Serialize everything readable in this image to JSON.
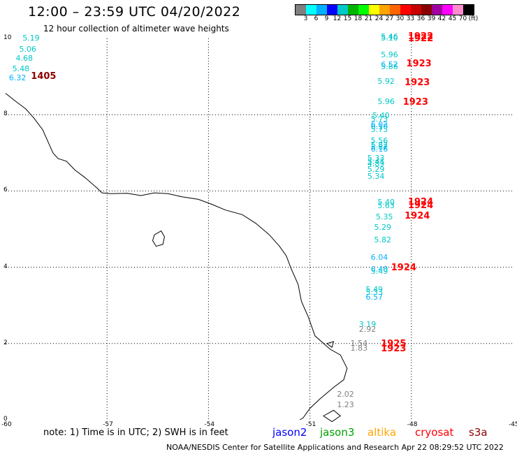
{
  "header": {
    "title": "12:00 – 23:59 UTC 04/20/2022",
    "subtitle": "12 hour collection of altimeter wave heights"
  },
  "colorbar": {
    "colors": [
      "#7f7f7f",
      "#00ffff",
      "#00b0ff",
      "#0000ff",
      "#00c8c8",
      "#00b400",
      "#00ff00",
      "#ffff00",
      "#ffa500",
      "#ff6400",
      "#ff0000",
      "#c80000",
      "#8b0000",
      "#a000a0",
      "#ff00ff",
      "#ff8ccf",
      "#000000"
    ],
    "labels": [
      "3",
      "6",
      "9",
      "12",
      "15",
      "18",
      "21",
      "24",
      "27",
      "30",
      "33",
      "36",
      "39",
      "42",
      "45",
      "70",
      "(ft)"
    ]
  },
  "axes": {
    "x_ticks": [
      "-60",
      "-57",
      "-54",
      "-51",
      "-48",
      "-45"
    ],
    "y_ticks": [
      "10",
      "8",
      "6",
      "4",
      "2",
      "0"
    ]
  },
  "wave_points": [
    {
      "v": "5.19",
      "c": "#00c8c8",
      "lon": -59.5,
      "lat": 10.0
    },
    {
      "v": "5.06",
      "c": "#00c8c8",
      "lon": -59.6,
      "lat": 9.7
    },
    {
      "v": "4.68",
      "c": "#00c8c8",
      "lon": -59.7,
      "lat": 9.47
    },
    {
      "v": "5.48",
      "c": "#00c8c8",
      "lon": -59.8,
      "lat": 9.2
    },
    {
      "v": "6.32",
      "c": "#00b0ff",
      "lon": -59.9,
      "lat": 8.95
    },
    {
      "v": "5.46",
      "c": "#00c8c8",
      "lon": -48.9,
      "lat": 10.04
    },
    {
      "v": "5.10",
      "c": "#00c8c8",
      "lon": -48.9,
      "lat": 10.0
    },
    {
      "v": "5.96",
      "c": "#00c8c8",
      "lon": -48.9,
      "lat": 9.56
    },
    {
      "v": "6.52",
      "c": "#00b0ff",
      "lon": -48.9,
      "lat": 9.3
    },
    {
      "v": "5.86",
      "c": "#00c8c8",
      "lon": -48.9,
      "lat": 9.25
    },
    {
      "v": "5.92",
      "c": "#00c8c8",
      "lon": -49.0,
      "lat": 8.86
    },
    {
      "v": "5.96",
      "c": "#00c8c8",
      "lon": -49.0,
      "lat": 8.34
    },
    {
      "v": "5.40",
      "c": "#00c8c8",
      "lon": -49.15,
      "lat": 7.97
    },
    {
      "v": "5.73",
      "c": "#00c8c8",
      "lon": -49.2,
      "lat": 7.87
    },
    {
      "v": "6.02",
      "c": "#00b0ff",
      "lon": -49.2,
      "lat": 7.73
    },
    {
      "v": "6.10",
      "c": "#00b0ff",
      "lon": -49.2,
      "lat": 7.68
    },
    {
      "v": "5.73",
      "c": "#00c8c8",
      "lon": -49.2,
      "lat": 7.6
    },
    {
      "v": "5.56",
      "c": "#00c8c8",
      "lon": -49.2,
      "lat": 7.3
    },
    {
      "v": "5.82",
      "c": "#00c8c8",
      "lon": -49.2,
      "lat": 7.2
    },
    {
      "v": "5.82",
      "c": "#00c8c8",
      "lon": -49.2,
      "lat": 7.15
    },
    {
      "v": "6.16",
      "c": "#00b0ff",
      "lon": -49.2,
      "lat": 7.08
    },
    {
      "v": "5.33",
      "c": "#00c8c8",
      "lon": -49.3,
      "lat": 6.85
    },
    {
      "v": "5.41",
      "c": "#00c8c8",
      "lon": -49.3,
      "lat": 6.75
    },
    {
      "v": "4.89",
      "c": "#00c8c8",
      "lon": -49.3,
      "lat": 6.7
    },
    {
      "v": "5.29",
      "c": "#00c8c8",
      "lon": -49.3,
      "lat": 6.55
    },
    {
      "v": "5.34",
      "c": "#00c8c8",
      "lon": -49.3,
      "lat": 6.38
    },
    {
      "v": "5.40",
      "c": "#00c8c8",
      "lon": -49.0,
      "lat": 5.7
    },
    {
      "v": "5.63",
      "c": "#00c8c8",
      "lon": -49.0,
      "lat": 5.6
    },
    {
      "v": "5.35",
      "c": "#00c8c8",
      "lon": -49.05,
      "lat": 5.32
    },
    {
      "v": "5.29",
      "c": "#00c8c8",
      "lon": -49.1,
      "lat": 5.04
    },
    {
      "v": "5.82",
      "c": "#00c8c8",
      "lon": -49.1,
      "lat": 4.7
    },
    {
      "v": "6.04",
      "c": "#00b0ff",
      "lon": -49.2,
      "lat": 4.25
    },
    {
      "v": "6.40",
      "c": "#00b0ff",
      "lon": -49.2,
      "lat": 3.93
    },
    {
      "v": "5.49",
      "c": "#00c8c8",
      "lon": -49.2,
      "lat": 3.88
    },
    {
      "v": "5.49",
      "c": "#00c8c8",
      "lon": -49.35,
      "lat": 3.4
    },
    {
      "v": "5.33",
      "c": "#00c8c8",
      "lon": -49.35,
      "lat": 3.33
    },
    {
      "v": "6.57",
      "c": "#00b0ff",
      "lon": -49.35,
      "lat": 3.2
    },
    {
      "v": "3.19",
      "c": "#00c8c8",
      "lon": -49.55,
      "lat": 2.5
    },
    {
      "v": "2.92",
      "c": "#7f7f7f",
      "lon": -49.55,
      "lat": 2.37
    },
    {
      "v": "1.54",
      "c": "#7f7f7f",
      "lon": -49.8,
      "lat": 2.0
    },
    {
      "v": "1.83",
      "c": "#7f7f7f",
      "lon": -49.8,
      "lat": 1.87
    },
    {
      "v": "2.02",
      "c": "#7f7f7f",
      "lon": -50.2,
      "lat": 0.66
    },
    {
      "v": "1.23",
      "c": "#7f7f7f",
      "lon": -50.2,
      "lat": 0.38
    }
  ],
  "time_labels": [
    {
      "t": "1405",
      "c": "#8b0000",
      "lon": -59.25,
      "lat": 9.0
    },
    {
      "t": "1922",
      "c": "#ff0000",
      "lon": -48.1,
      "lat": 10.04
    },
    {
      "t": "1922",
      "c": "#ff0000",
      "lon": -48.1,
      "lat": 9.98
    },
    {
      "t": "1923",
      "c": "#ff0000",
      "lon": -48.15,
      "lat": 9.33
    },
    {
      "t": "1923",
      "c": "#ff0000",
      "lon": -48.2,
      "lat": 8.83
    },
    {
      "t": "1923",
      "c": "#ff0000",
      "lon": -48.25,
      "lat": 8.31
    },
    {
      "t": "1924",
      "c": "#ff0000",
      "lon": -48.1,
      "lat": 5.7
    },
    {
      "t": "1924",
      "c": "#ff0000",
      "lon": -48.1,
      "lat": 5.6
    },
    {
      "t": "1924",
      "c": "#ff0000",
      "lon": -48.2,
      "lat": 5.33
    },
    {
      "t": "1924",
      "c": "#ff0000",
      "lon": -48.6,
      "lat": 3.97
    },
    {
      "t": "1925",
      "c": "#ff0000",
      "lon": -48.9,
      "lat": 1.97
    },
    {
      "t": "1923",
      "c": "#ff0000",
      "lon": -48.9,
      "lat": 1.85
    }
  ],
  "footer": {
    "note": "note:  1) Time is in UTC;  2) SWH is in feet",
    "satellites": [
      {
        "name": "jason2",
        "color": "#0000ff"
      },
      {
        "name": "jason3",
        "color": "#00a000"
      },
      {
        "name": "altika",
        "color": "#ffa500"
      },
      {
        "name": "cryosat",
        "color": "#ff0000"
      },
      {
        "name": "s3a",
        "color": "#8b0000"
      }
    ],
    "credit": "NOAA/NESDIS Center for Satellite Applications and Research    Apr 22 08:29:52 UTC 2022"
  }
}
